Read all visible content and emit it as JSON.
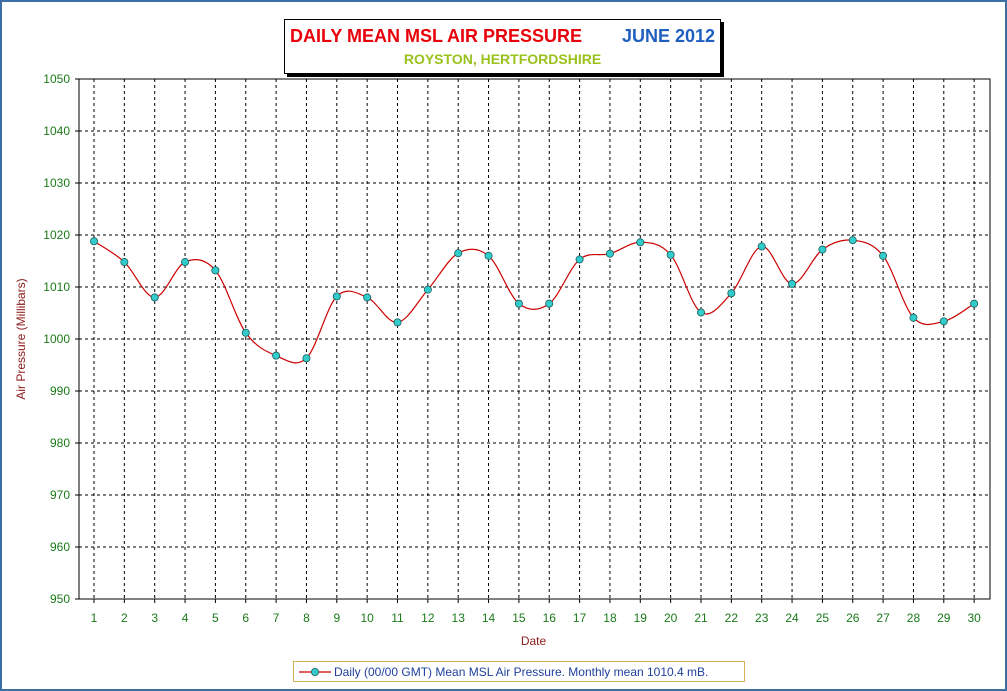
{
  "title": {
    "main": "DAILY MEAN MSL AIR PRESSURE",
    "month": "JUNE 2012",
    "subtitle": "ROYSTON, HERTFORDSHIRE"
  },
  "colors": {
    "title": "#e8000a",
    "month": "#1f5fbf",
    "subtitle": "#99c21c",
    "axis_labels": "#1a7a1a",
    "axis_title": "#8b1a1a",
    "line": "#cc0000",
    "marker_fill": "#33cccc",
    "legend_text": "#1f3f9f",
    "grid": "#000000"
  },
  "legend": {
    "label": "Daily (00/00 GMT)  Mean MSL Air Pressure. Monthly mean 1010.4 mB."
  },
  "chart_data": {
    "type": "line",
    "xlabel": "Date",
    "ylabel": "Air Pressure (Millibars)",
    "ylim": [
      950,
      1050
    ],
    "yticks": [
      950,
      960,
      970,
      980,
      990,
      1000,
      1010,
      1020,
      1030,
      1040,
      1050
    ],
    "categories": [
      "1",
      "2",
      "3",
      "4",
      "5",
      "6",
      "7",
      "8",
      "9",
      "10",
      "11",
      "12",
      "13",
      "14",
      "15",
      "16",
      "17",
      "18",
      "19",
      "20",
      "21",
      "22",
      "23",
      "24",
      "25",
      "26",
      "27",
      "28",
      "29",
      "30"
    ],
    "grid": true,
    "legend_position": "bottom",
    "series": [
      {
        "name": "Daily (00/00 GMT)  Mean MSL Air Pressure. Monthly mean 1010.4 mB.",
        "smoothed": true,
        "values": [
          1018.8,
          1014.8,
          1008.0,
          1014.8,
          1013.2,
          1001.2,
          996.8,
          996.3,
          1008.2,
          1008.0,
          1003.2,
          1009.5,
          1016.5,
          1016.0,
          1006.8,
          1006.8,
          1015.3,
          1016.4,
          1018.6,
          1016.2,
          1005.1,
          1008.8,
          1017.8,
          1010.6,
          1017.2,
          1019.0,
          1016.0,
          1004.1,
          1003.4,
          1006.8
        ]
      }
    ]
  }
}
